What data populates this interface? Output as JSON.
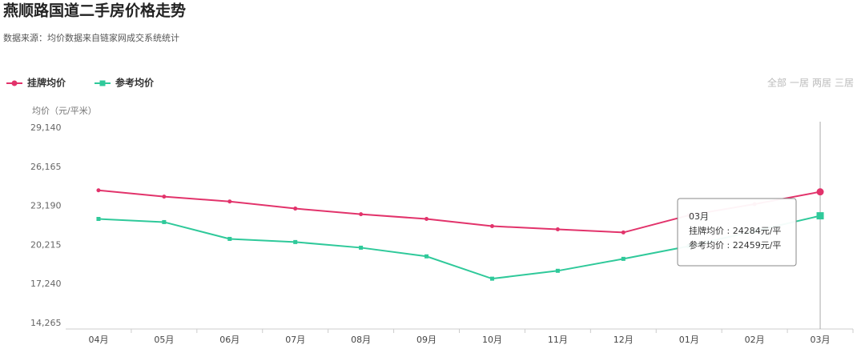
{
  "chart_data": {
    "type": "line",
    "title": "燕顺路国道二手房价格走势",
    "subtitle": "数据来源：均价数据来自链家网成交系统统计",
    "y_label": "均价（元/平米）",
    "tabs": [
      "全部",
      "一居",
      "两居",
      "三居"
    ],
    "active_tab": 0,
    "categories": [
      "04月",
      "05月",
      "06月",
      "07月",
      "08月",
      "09月",
      "10月",
      "11月",
      "12月",
      "01月",
      "02月",
      "03月"
    ],
    "series": [
      {
        "name": "挂牌均价",
        "color": "#e2336b",
        "marker": "circle",
        "values": [
          24400,
          23920,
          23550,
          23010,
          22580,
          22220,
          21670,
          21430,
          21190,
          22500,
          23350,
          24284
        ]
      },
      {
        "name": "参考均价",
        "color": "#2fc99a",
        "marker": "square",
        "values": [
          22220,
          21980,
          20700,
          20460,
          20030,
          19370,
          17670,
          18270,
          19180,
          20150,
          21300,
          22459
        ]
      }
    ],
    "ylim": [
      14265,
      29140
    ],
    "yticks": [
      {
        "value": 14265,
        "label": "14,265"
      },
      {
        "value": 17240,
        "label": "17,240"
      },
      {
        "value": 20215,
        "label": "20,215"
      },
      {
        "value": 23190,
        "label": "23,190"
      },
      {
        "value": 26165,
        "label": "26,165"
      },
      {
        "value": 29140,
        "label": "29,140"
      }
    ],
    "tooltip": {
      "title": "03月",
      "lines": [
        "挂牌均价 : 24284元/平",
        "参考均价 : 22459元/平"
      ]
    }
  }
}
